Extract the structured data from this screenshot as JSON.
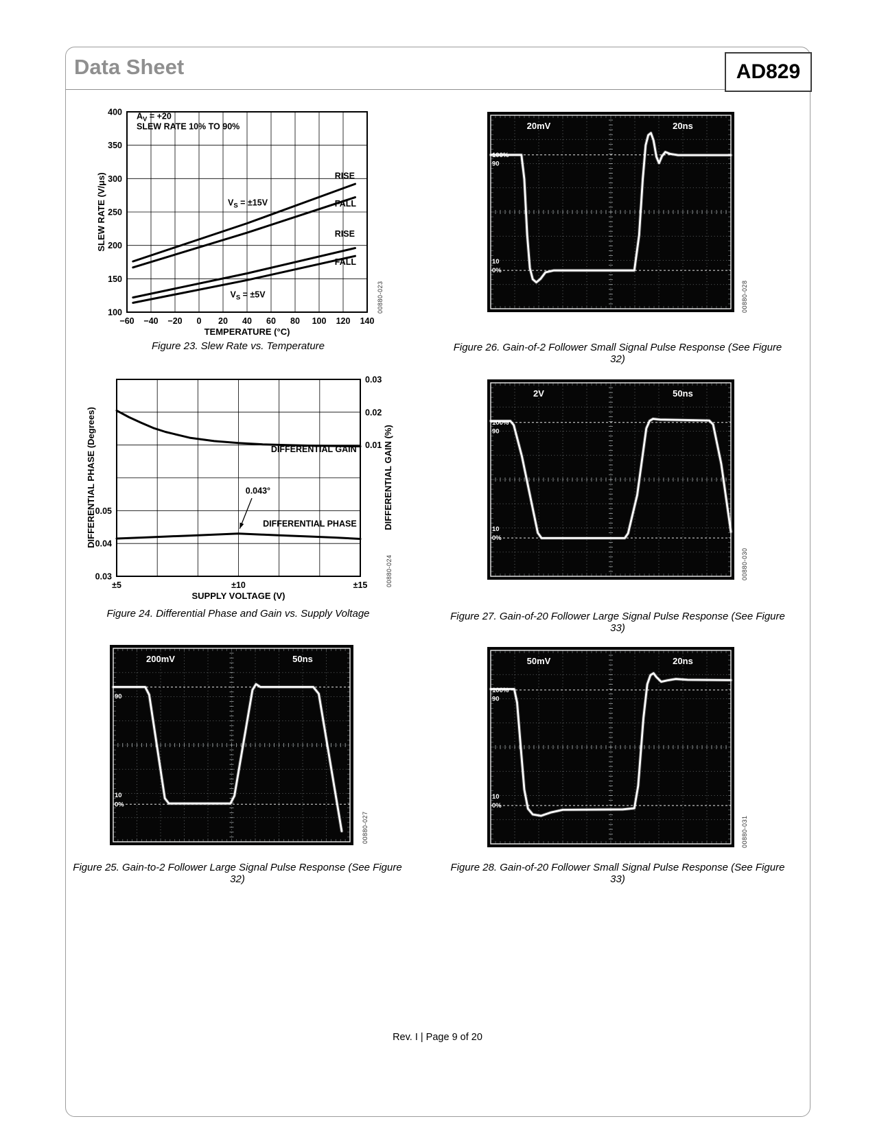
{
  "header": {
    "doc_type": "Data Sheet",
    "part_number": "AD829"
  },
  "footer": {
    "text": "Rev. I | Page 9 of 20"
  },
  "figures": [
    {
      "id": "fig23",
      "caption": "Figure 23. Slew Rate vs. Temperature",
      "side_code": "00880-023"
    },
    {
      "id": "fig24",
      "caption": "Figure 24. Differential Phase and Gain vs. Supply Voltage",
      "side_code": "00880-024"
    },
    {
      "id": "fig25",
      "caption": "Figure 25. Gain-to-2 Follower Large Signal Pulse Response (See Figure 32)",
      "side_code": "00880-027"
    },
    {
      "id": "fig26",
      "caption": "Figure 26. Gain-of-2 Follower Small Signal Pulse Response (See Figure 32)",
      "side_code": "00880-028"
    },
    {
      "id": "fig27",
      "caption": "Figure 27. Gain-of-20 Follower Large Signal Pulse Response (See Figure 33)",
      "side_code": "00880-030"
    },
    {
      "id": "fig28",
      "caption": "Figure 28. Gain-of-20 Follower Small Signal Pulse Response (See Figure 33)",
      "side_code": "00880-031"
    }
  ],
  "chart_data": [
    {
      "id": "fig23",
      "type": "line",
      "title": "Figure 23. Slew Rate vs. Temperature",
      "xlabel": "TEMPERATURE (°C)",
      "ylabel": "SLEW RATE (V/μs)",
      "xlim": [
        -60,
        140
      ],
      "ylim": [
        100,
        400
      ],
      "xticks": {
        "values": [
          -60,
          -40,
          -20,
          0,
          20,
          40,
          60,
          80,
          100,
          120,
          140
        ],
        "labels": [
          "−60",
          "−40",
          "−20",
          "0",
          "20",
          "40",
          "60",
          "80",
          "100",
          "120",
          "140"
        ]
      },
      "yticks": {
        "values": [
          100,
          150,
          200,
          250,
          300,
          350,
          400
        ],
        "labels": [
          "100",
          "150",
          "200",
          "250",
          "300",
          "350",
          "400"
        ]
      },
      "series": [
        {
          "name": "vs15-rise",
          "x": [
            -55,
            40,
            130
          ],
          "y": [
            176,
            233,
            292
          ]
        },
        {
          "name": "vs15-fall",
          "x": [
            -55,
            40,
            130
          ],
          "y": [
            167,
            219,
            272
          ]
        },
        {
          "name": "vs5-rise",
          "x": [
            -55,
            40,
            130
          ],
          "y": [
            122,
            158,
            196
          ]
        },
        {
          "name": "vs5-fall",
          "x": [
            -55,
            40,
            130
          ],
          "y": [
            114,
            148,
            184
          ]
        }
      ],
      "annotations": [
        {
          "name": "gain-condition",
          "parts": [
            {
              "t": "A"
            },
            {
              "t": "V",
              "sub": true
            },
            {
              "t": " = +20"
            }
          ],
          "x": -52,
          "y": 389,
          "anchor": "start"
        },
        {
          "name": "slew-condition",
          "parts": [
            {
              "t": "SLEW RATE 10% TO 90%"
            }
          ],
          "x": -52,
          "y": 374,
          "anchor": "start"
        },
        {
          "name": "vs15-label",
          "parts": [
            {
              "t": "V"
            },
            {
              "t": "S",
              "sub": true
            },
            {
              "t": " = ±15V"
            }
          ],
          "x": 24,
          "y": 260,
          "anchor": "start"
        },
        {
          "name": "vs5-label",
          "parts": [
            {
              "t": "V"
            },
            {
              "t": "S",
              "sub": true
            },
            {
              "t": " = ±5V"
            }
          ],
          "x": 26,
          "y": 122,
          "anchor": "start"
        },
        {
          "name": "rise15-label",
          "parts": [
            {
              "t": "RISE"
            }
          ],
          "x": 113,
          "y": 300,
          "anchor": "start"
        },
        {
          "name": "fall15-label",
          "parts": [
            {
              "t": "FALL"
            }
          ],
          "x": 113,
          "y": 258,
          "anchor": "start"
        },
        {
          "name": "rise5-label",
          "parts": [
            {
              "t": "RISE"
            }
          ],
          "x": 113,
          "y": 213,
          "anchor": "start"
        },
        {
          "name": "fall5-label",
          "parts": [
            {
              "t": "FALL"
            }
          ],
          "x": 113,
          "y": 171,
          "anchor": "start"
        }
      ]
    },
    {
      "id": "fig24",
      "type": "line-dual",
      "title": "Figure 24. Differential Phase and Gain vs. Supply Voltage",
      "xlabel": "SUPPLY VOLTAGE (V)",
      "ylabel_left": "DIFFERENTIAL PHASE (Degrees)",
      "ylabel_right": "DIFFERENTIAL GAIN (%)",
      "xlim": [
        5,
        15
      ],
      "ylim_left": [
        0.03,
        0.09
      ],
      "grid_x": [
        5,
        6.667,
        8.333,
        10,
        11.667,
        13.333,
        15
      ],
      "grid_y": [
        0.03,
        0.04,
        0.05,
        0.06,
        0.07,
        0.08,
        0.09
      ],
      "xticks": {
        "values": [
          5,
          10,
          15
        ],
        "labels": [
          "±5",
          "±10",
          "±15"
        ]
      },
      "yticks_left": {
        "values": [
          0.05,
          0.04,
          0.03
        ],
        "labels": [
          "0.05",
          "0.04",
          "0.03"
        ]
      },
      "yticks_right": {
        "values": [
          0.09,
          0.08,
          0.07
        ],
        "labels": [
          "0.03",
          "0.02",
          "0.01"
        ]
      },
      "series": [
        {
          "name": "differential-gain",
          "axis_offset": 0.06,
          "x": [
            5,
            5.5,
            6,
            6.5,
            7,
            8,
            9,
            10,
            11,
            12,
            13,
            15
          ],
          "y": [
            0.0205,
            0.0185,
            0.0168,
            0.0152,
            0.014,
            0.0122,
            0.0112,
            0.0106,
            0.0102,
            0.01,
            0.0098,
            0.0096
          ]
        },
        {
          "name": "differential-phase",
          "axis_offset": 0,
          "x": [
            5,
            6,
            7,
            8,
            9,
            10,
            11,
            12,
            13,
            14,
            15
          ],
          "y": [
            0.0415,
            0.0418,
            0.0421,
            0.0424,
            0.0427,
            0.043,
            0.0427,
            0.0424,
            0.0421,
            0.0418,
            0.0414
          ]
        }
      ],
      "annotations": [
        {
          "name": "gain-label",
          "parts": [
            {
              "t": "DIFFERENTIAL GAIN"
            }
          ],
          "x": 14.85,
          "y": 0.0678,
          "anchor": "end"
        },
        {
          "name": "phase-peak",
          "parts": [
            {
              "t": "0.043°"
            }
          ],
          "x": 10.8,
          "y": 0.0552,
          "anchor": "middle",
          "arrow": {
            "x1": 10.55,
            "y1": 0.0538,
            "x2": 10.05,
            "y2": 0.0445
          }
        },
        {
          "name": "phase-label",
          "parts": [
            {
              "t": "DIFFERENTIAL PHASE"
            }
          ],
          "x": 14.85,
          "y": 0.0452,
          "anchor": "end"
        }
      ]
    },
    {
      "id": "fig25",
      "type": "scope",
      "volts_per_div": "200mV",
      "time_per_div": "50ns",
      "markers": [
        {
          "label": "90",
          "y": 0.248
        },
        {
          "label": "10",
          "y": 0.758
        },
        {
          "label": "0%",
          "y": 0.806
        }
      ],
      "ref_lines": [
        0.2,
        0.806
      ],
      "trace": [
        [
          0,
          0.2
        ],
        [
          0.135,
          0.2
        ],
        [
          0.152,
          0.24
        ],
        [
          0.218,
          0.775
        ],
        [
          0.235,
          0.802
        ],
        [
          0.495,
          0.802
        ],
        [
          0.512,
          0.762
        ],
        [
          0.588,
          0.215
        ],
        [
          0.603,
          0.185
        ],
        [
          0.622,
          0.2
        ],
        [
          0.845,
          0.2
        ],
        [
          0.868,
          0.235
        ],
        [
          0.965,
          0.945
        ]
      ]
    },
    {
      "id": "fig26",
      "type": "scope",
      "volts_per_div": "20mV",
      "time_per_div": "20ns",
      "markers": [
        {
          "label": "100%",
          "y": 0.205
        },
        {
          "label": "90",
          "y": 0.25
        },
        {
          "label": "10",
          "y": 0.756
        },
        {
          "label": "0%",
          "y": 0.802
        }
      ],
      "ref_lines": [
        0.205,
        0.802
      ],
      "trace": [
        [
          0,
          0.205
        ],
        [
          0.128,
          0.205
        ],
        [
          0.14,
          0.33
        ],
        [
          0.152,
          0.62
        ],
        [
          0.163,
          0.79
        ],
        [
          0.175,
          0.848
        ],
        [
          0.19,
          0.864
        ],
        [
          0.207,
          0.846
        ],
        [
          0.228,
          0.812
        ],
        [
          0.262,
          0.802
        ],
        [
          0.598,
          0.802
        ],
        [
          0.618,
          0.62
        ],
        [
          0.633,
          0.33
        ],
        [
          0.645,
          0.155
        ],
        [
          0.656,
          0.103
        ],
        [
          0.667,
          0.092
        ],
        [
          0.678,
          0.13
        ],
        [
          0.69,
          0.215
        ],
        [
          0.701,
          0.247
        ],
        [
          0.713,
          0.212
        ],
        [
          0.727,
          0.19
        ],
        [
          0.748,
          0.2
        ],
        [
          0.78,
          0.206
        ],
        [
          1,
          0.206
        ]
      ]
    },
    {
      "id": "fig27",
      "type": "scope",
      "volts_per_div": "2V",
      "time_per_div": "50ns",
      "markers": [
        {
          "label": "100%",
          "y": 0.205
        },
        {
          "label": "90",
          "y": 0.25
        },
        {
          "label": "10",
          "y": 0.756
        },
        {
          "label": "0%",
          "y": 0.802
        }
      ],
      "ref_lines": [
        0.205,
        0.802
      ],
      "trace": [
        [
          0,
          0.197
        ],
        [
          0.082,
          0.197
        ],
        [
          0.096,
          0.218
        ],
        [
          0.13,
          0.38
        ],
        [
          0.196,
          0.775
        ],
        [
          0.212,
          0.803
        ],
        [
          0.558,
          0.803
        ],
        [
          0.572,
          0.778
        ],
        [
          0.61,
          0.58
        ],
        [
          0.648,
          0.235
        ],
        [
          0.662,
          0.196
        ],
        [
          0.676,
          0.186
        ],
        [
          0.705,
          0.19
        ],
        [
          0.91,
          0.195
        ],
        [
          0.926,
          0.215
        ],
        [
          0.96,
          0.42
        ],
        [
          1.0,
          0.77
        ]
      ]
    },
    {
      "id": "fig28",
      "type": "scope",
      "volts_per_div": "50mV",
      "time_per_div": "20ns",
      "markers": [
        {
          "label": "100%",
          "y": 0.205
        },
        {
          "label": "90",
          "y": 0.25
        },
        {
          "label": "10",
          "y": 0.756
        },
        {
          "label": "0%",
          "y": 0.802
        }
      ],
      "ref_lines": [
        0.205,
        0.802
      ],
      "trace": [
        [
          0,
          0.2
        ],
        [
          0.098,
          0.2
        ],
        [
          0.11,
          0.27
        ],
        [
          0.125,
          0.5
        ],
        [
          0.14,
          0.72
        ],
        [
          0.155,
          0.818
        ],
        [
          0.175,
          0.848
        ],
        [
          0.21,
          0.855
        ],
        [
          0.25,
          0.838
        ],
        [
          0.3,
          0.824
        ],
        [
          0.55,
          0.822
        ],
        [
          0.598,
          0.816
        ],
        [
          0.614,
          0.7
        ],
        [
          0.636,
          0.35
        ],
        [
          0.652,
          0.175
        ],
        [
          0.665,
          0.128
        ],
        [
          0.678,
          0.118
        ],
        [
          0.69,
          0.138
        ],
        [
          0.71,
          0.162
        ],
        [
          0.735,
          0.155
        ],
        [
          0.77,
          0.148
        ],
        [
          0.82,
          0.152
        ],
        [
          1,
          0.154
        ]
      ]
    }
  ]
}
